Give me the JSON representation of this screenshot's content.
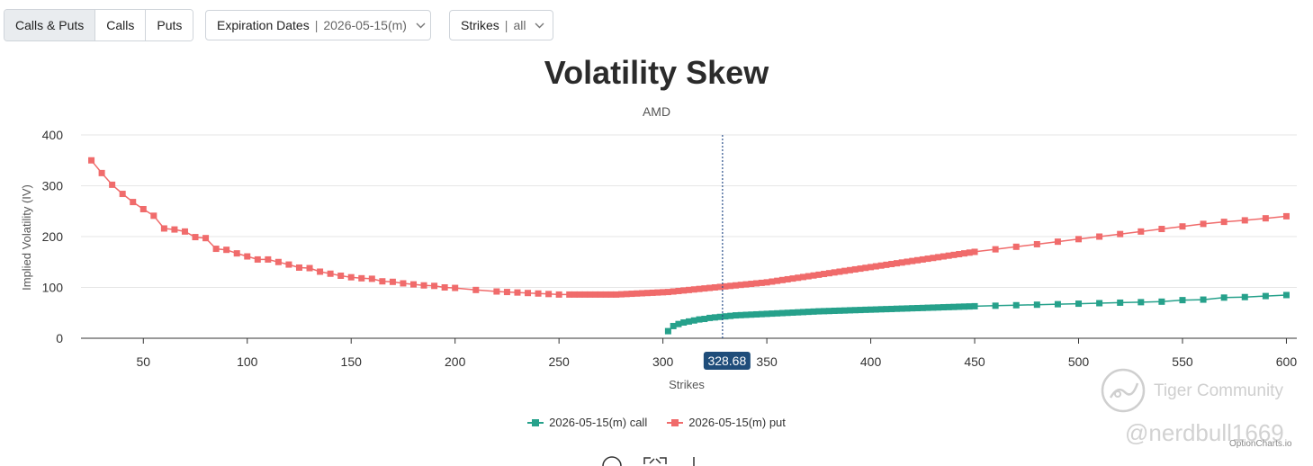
{
  "toolbar": {
    "tabs": [
      {
        "label": "Calls & Puts",
        "active": true
      },
      {
        "label": "Calls",
        "active": false
      },
      {
        "label": "Puts",
        "active": false
      }
    ],
    "expiration": {
      "label": "Expiration Dates",
      "value": "2026-05-15(m)"
    },
    "strikes": {
      "label": "Strikes",
      "value": "all"
    }
  },
  "chart_data": {
    "type": "line",
    "title": "Volatility Skew",
    "subtitle": "AMD",
    "xlabel": "Strikes",
    "ylabel": "Implied Volatility (IV)",
    "xlim": [
      20,
      605
    ],
    "ylim": [
      0,
      400
    ],
    "xticks": [
      50,
      100,
      150,
      200,
      250,
      300,
      350,
      400,
      450,
      500,
      550,
      600
    ],
    "yticks": [
      0,
      100,
      200,
      300,
      400
    ],
    "grid": true,
    "legend_position": "bottom-center",
    "crosshair": {
      "x": 328.68,
      "label": "328.68"
    },
    "series": [
      {
        "name": "2026-05-15(m) call",
        "color": "#26a18b",
        "x": [
          302.5,
          305,
          307.5,
          310,
          312.5,
          315,
          317.5,
          320,
          322.5,
          325,
          327.5,
          330,
          332.5,
          335,
          337.5,
          340,
          342.5,
          345,
          347.5,
          350,
          352.5,
          355,
          357.5,
          360,
          362.5,
          365,
          367.5,
          370,
          372.5,
          375,
          377.5,
          380,
          382.5,
          385,
          387.5,
          390,
          392.5,
          395,
          397.5,
          400,
          402.5,
          405,
          407.5,
          410,
          412.5,
          415,
          417.5,
          420,
          422.5,
          425,
          427.5,
          430,
          432.5,
          435,
          437.5,
          440,
          442.5,
          445,
          447.5,
          450,
          460,
          470,
          480,
          490,
          500,
          510,
          520,
          530,
          540,
          550,
          560,
          570,
          580,
          590,
          600
        ],
        "values": [
          14,
          24,
          28,
          31,
          33,
          35,
          37,
          38,
          40,
          41,
          42,
          43,
          44,
          45,
          45.5,
          46,
          46.5,
          47,
          47.5,
          48,
          48.5,
          49,
          49.5,
          50,
          50.5,
          51,
          51.5,
          52,
          52.5,
          53,
          53.3,
          53.6,
          54,
          54.3,
          54.6,
          55,
          55.3,
          55.6,
          56,
          56.3,
          56.6,
          57,
          57.3,
          57.6,
          58,
          58.3,
          58.6,
          59,
          59.3,
          59.6,
          60,
          60.3,
          60.6,
          61,
          61.3,
          61.6,
          62,
          62.3,
          62.6,
          63,
          64,
          65,
          66,
          67,
          68,
          69,
          70,
          71,
          72,
          75,
          76,
          80,
          81,
          83,
          85
        ]
      },
      {
        "name": "2026-05-15(m) put",
        "color": "#f06b6b",
        "x": [
          25,
          30,
          35,
          40,
          45,
          50,
          55,
          60,
          65,
          70,
          75,
          80,
          85,
          90,
          95,
          100,
          105,
          110,
          115,
          120,
          125,
          130,
          135,
          140,
          145,
          150,
          155,
          160,
          165,
          170,
          175,
          180,
          185,
          190,
          195,
          200,
          210,
          220,
          225,
          230,
          235,
          240,
          245,
          250,
          255,
          257.5,
          260,
          262.5,
          265,
          267.5,
          270,
          272.5,
          275,
          277.5,
          280,
          282.5,
          285,
          287.5,
          290,
          292.5,
          295,
          297.5,
          300,
          302.5,
          305,
          307.5,
          310,
          312.5,
          315,
          317.5,
          320,
          322.5,
          325,
          327.5,
          330,
          332.5,
          335,
          337.5,
          340,
          342.5,
          345,
          347.5,
          350,
          352.5,
          355,
          357.5,
          360,
          362.5,
          365,
          367.5,
          370,
          372.5,
          375,
          377.5,
          380,
          382.5,
          385,
          387.5,
          390,
          392.5,
          395,
          397.5,
          400,
          402.5,
          405,
          407.5,
          410,
          412.5,
          415,
          417.5,
          420,
          422.5,
          425,
          427.5,
          430,
          432.5,
          435,
          437.5,
          440,
          442.5,
          445,
          447.5,
          450,
          460,
          470,
          480,
          490,
          500,
          510,
          520,
          530,
          540,
          550,
          560,
          570,
          580,
          590,
          600
        ],
        "values": [
          350,
          325,
          302,
          284,
          268,
          254,
          241,
          216,
          214,
          210,
          199,
          197,
          176,
          174,
          167,
          161,
          155,
          155,
          150,
          145,
          139,
          138,
          131,
          127,
          123,
          120,
          118,
          117,
          112,
          111,
          108,
          106,
          104,
          103,
          100,
          99,
          95,
          92,
          91,
          90,
          89,
          88,
          87,
          86,
          86,
          86,
          86,
          86,
          86,
          86,
          86,
          86,
          86,
          86,
          86.5,
          87,
          87.5,
          88,
          88.5,
          89,
          89.5,
          90,
          90.5,
          91,
          92,
          93,
          94,
          95,
          96,
          97,
          98,
          99,
          100,
          101,
          102,
          103,
          104,
          105,
          106,
          107,
          108,
          109,
          110,
          111.5,
          113,
          114.5,
          116,
          117.5,
          119,
          120.5,
          122,
          123.5,
          125,
          126.5,
          128,
          129.5,
          131,
          132.5,
          134,
          135.5,
          137,
          138.5,
          140,
          141.5,
          143,
          144.5,
          146,
          147.5,
          149,
          150.5,
          152,
          153.5,
          155,
          156.5,
          158,
          159.5,
          161,
          162.5,
          164,
          165.5,
          167,
          168.5,
          170,
          175,
          180,
          185,
          190,
          195,
          200,
          205,
          210,
          215,
          220,
          225,
          229,
          232,
          236,
          240
        ]
      }
    ]
  },
  "watermark": {
    "community": "Tiger Community",
    "user": "@nerdbull1669",
    "site": "OptionCharts.io"
  }
}
